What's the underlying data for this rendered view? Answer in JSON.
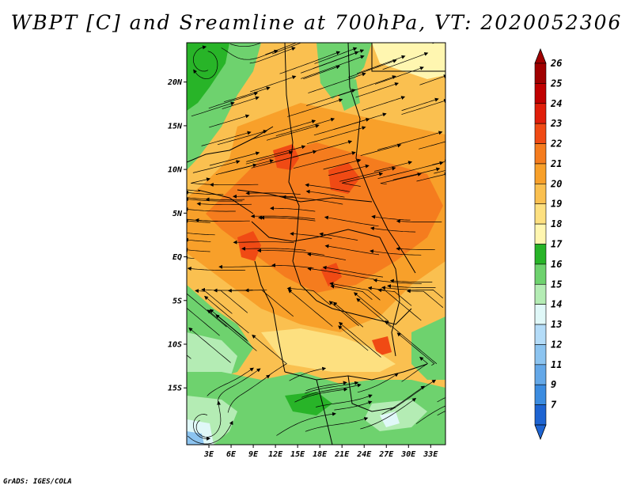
{
  "title": "WBPT [C] and Sreamline at 700hPa, VT: 2020052306",
  "credit": "GrADS: IGES/COLA",
  "map": {
    "lat_range": [
      -21.5,
      24.5
    ],
    "lon_range": [
      0,
      35
    ],
    "lat_ticks": [
      {
        "value": 20,
        "label": "20N"
      },
      {
        "value": 15,
        "label": "15N"
      },
      {
        "value": 10,
        "label": "10N"
      },
      {
        "value": 5,
        "label": "5N"
      },
      {
        "value": 0,
        "label": "EQ"
      },
      {
        "value": -5,
        "label": "5S"
      },
      {
        "value": -10,
        "label": "10S"
      },
      {
        "value": -15,
        "label": "15S"
      }
    ],
    "lon_ticks": [
      {
        "value": 3,
        "label": "3E"
      },
      {
        "value": 6,
        "label": "6E"
      },
      {
        "value": 9,
        "label": "9E"
      },
      {
        "value": 12,
        "label": "12E"
      },
      {
        "value": 15,
        "label": "15E"
      },
      {
        "value": 18,
        "label": "18E"
      },
      {
        "value": 21,
        "label": "21E"
      },
      {
        "value": 24,
        "label": "24E"
      },
      {
        "value": 27,
        "label": "27E"
      },
      {
        "value": 30,
        "label": "30E"
      },
      {
        "value": 33,
        "label": "33E"
      }
    ]
  },
  "colorbar": {
    "levels": [
      {
        "label": "26",
        "color": "#a00000"
      },
      {
        "label": "25",
        "color": "#c00000"
      },
      {
        "label": "24",
        "color": "#e01e0a"
      },
      {
        "label": "23",
        "color": "#f04a14"
      },
      {
        "label": "22",
        "color": "#f57c1e"
      },
      {
        "label": "21",
        "color": "#f8a02a"
      },
      {
        "label": "20",
        "color": "#fac050"
      },
      {
        "label": "19",
        "color": "#fde080"
      },
      {
        "label": "18",
        "color": "#fff6b0"
      },
      {
        "label": "17",
        "color": "#28b428"
      },
      {
        "label": "16",
        "color": "#6ed26e"
      },
      {
        "label": "15",
        "color": "#b4ecb4"
      },
      {
        "label": "14",
        "color": "#e0f8f8"
      },
      {
        "label": "13",
        "color": "#b4dcf8"
      },
      {
        "label": "12",
        "color": "#8cc4f0"
      },
      {
        "label": "11",
        "color": "#64a8e8"
      },
      {
        "label": "9",
        "color": "#3c8ce0"
      },
      {
        "label": "7",
        "color": "#1e64d2"
      }
    ],
    "low_color": "#1e64d2",
    "high_color": "#a00000"
  }
}
